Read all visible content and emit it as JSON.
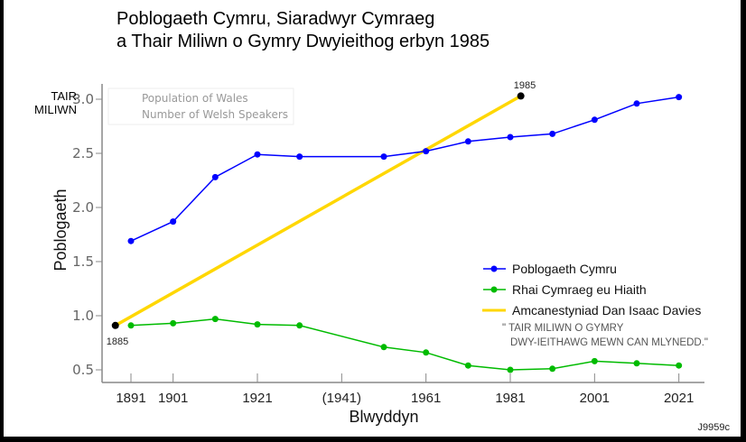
{
  "chart_data": {
    "type": "line",
    "title": [
      "Poblogaeth Cymru, Siaradwyr Cymraeg",
      "a Thair Miliwn o Gymry Dwyieithog erbyn 1985"
    ],
    "xlabel": "Blwyddyn",
    "ylabel": "Poblogaeth",
    "ylim": [
      0.45,
      3.15
    ],
    "xlim": [
      1886,
      2027
    ],
    "y_ticks": [
      "0.5",
      "1.0",
      "1.5",
      "2.0",
      "2.5",
      "3.0"
    ],
    "x_ticks": [
      {
        "year": 1891,
        "label": "1891"
      },
      {
        "year": 1901,
        "label": "1901"
      },
      {
        "year": 1921,
        "label": "1921"
      },
      {
        "year": 1941,
        "label": "(1941)"
      },
      {
        "year": 1961,
        "label": "1961"
      },
      {
        "year": 1981,
        "label": "1981"
      },
      {
        "year": 2001,
        "label": "2001"
      },
      {
        "year": 2021,
        "label": "2021"
      }
    ],
    "y_annotation": "TAIR\nMILIWN",
    "series": [
      {
        "name": "Poblogaeth Cymru",
        "color": "#0000ff",
        "x": [
          1891,
          1901,
          1911,
          1921,
          1931,
          1951,
          1961,
          1971,
          1981,
          1991,
          2001,
          2011,
          2021
        ],
        "y": [
          1.69,
          1.87,
          2.28,
          2.49,
          2.47,
          2.47,
          2.52,
          2.61,
          2.65,
          2.68,
          2.81,
          2.96,
          3.02
        ]
      },
      {
        "name": "Rhai Cymraeg eu Hiaith",
        "color": "#00bb00",
        "x": [
          1891,
          1901,
          1911,
          1921,
          1931,
          1951,
          1961,
          1971,
          1981,
          1991,
          2001,
          2011,
          2021
        ],
        "y": [
          0.91,
          0.93,
          0.97,
          0.92,
          0.91,
          0.71,
          0.66,
          0.54,
          0.5,
          0.51,
          0.58,
          0.56,
          0.54
        ]
      },
      {
        "name": "Amcanestyniad Dan Isaac Davies",
        "color": "#ffd700",
        "x": [
          1885,
          1985
        ],
        "y": [
          0.91,
          3.03
        ],
        "point_labels": [
          "1885",
          "1985"
        ]
      }
    ],
    "legend_position": "lower-right",
    "legend_quote": [
      "\" TAIR MILIWN O GYMRY",
      "DWY-IEITHAWG MEWN CAN MLYNEDD.\""
    ],
    "ghost_legend": [
      "Population of Wales",
      "Number of Welsh Speakers"
    ],
    "corner_code": "J9959c"
  }
}
